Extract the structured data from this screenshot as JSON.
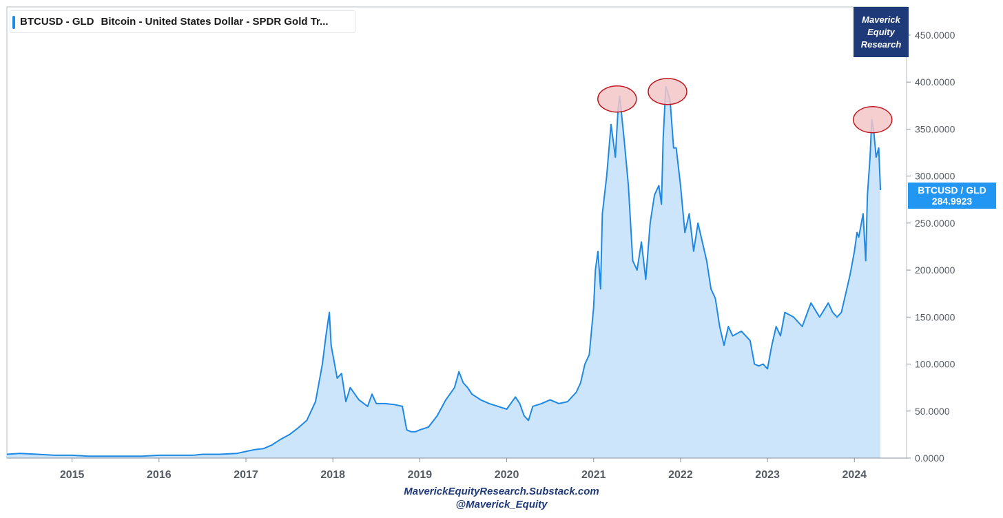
{
  "legend": {
    "symbol": "BTCUSD - GLD",
    "description": "Bitcoin - United States Dollar - SPDR Gold Tr..."
  },
  "brand": {
    "line1": "Maverick",
    "line2": "Equity",
    "line3": "Research"
  },
  "price_tag": {
    "label": "BTCUSD / GLD",
    "value": "284.9923"
  },
  "footer": {
    "site": "MaverickEquityResearch.Substack.com",
    "handle": "@Maverick_Equity"
  },
  "colors": {
    "line": "#1e88e5",
    "fill": "#cce5fb",
    "highlight_fill": "#f3c6c8",
    "highlight_stroke": "#c0161e",
    "brand_bg": "#1f3a78",
    "tag_bg": "#2196f3"
  },
  "chart_data": {
    "type": "area",
    "ylim": [
      0,
      480
    ],
    "xlim": [
      2014.25,
      2024.6
    ],
    "y_ticks": [
      0,
      50,
      100,
      150,
      200,
      250,
      300,
      350,
      400,
      450
    ],
    "y_tick_labels": [
      "0.0000",
      "50.0000",
      "100.0000",
      "150.0000",
      "200.0000",
      "250.0000",
      "300.0000",
      "350.0000",
      "400.0000",
      "450.0000"
    ],
    "x_ticks": [
      2015,
      2016,
      2017,
      2018,
      2019,
      2020,
      2021,
      2022,
      2023,
      2024
    ],
    "x_tick_labels": [
      "2015",
      "2016",
      "2017",
      "2018",
      "2019",
      "2020",
      "2021",
      "2022",
      "2023",
      "2024"
    ],
    "series": [
      {
        "x": [
          2014.25,
          2014.4,
          2014.6,
          2014.8,
          2015.0,
          2015.2,
          2015.5,
          2015.8,
          2016.0,
          2016.2,
          2016.4,
          2016.5,
          2016.7,
          2016.9,
          2017.0,
          2017.1,
          2017.2,
          2017.3,
          2017.4,
          2017.5,
          2017.6,
          2017.7,
          2017.8,
          2017.88,
          2017.92,
          2017.96,
          2017.98,
          2018.0,
          2018.05,
          2018.1,
          2018.15,
          2018.2,
          2018.3,
          2018.4,
          2018.45,
          2018.5,
          2018.6,
          2018.7,
          2018.8,
          2018.85,
          2018.9,
          2018.95,
          2019.0,
          2019.1,
          2019.2,
          2019.3,
          2019.4,
          2019.45,
          2019.5,
          2019.55,
          2019.6,
          2019.7,
          2019.8,
          2019.9,
          2020.0,
          2020.1,
          2020.15,
          2020.2,
          2020.25,
          2020.3,
          2020.4,
          2020.5,
          2020.6,
          2020.7,
          2020.8,
          2020.85,
          2020.9,
          2020.95,
          2021.0,
          2021.02,
          2021.05,
          2021.08,
          2021.1,
          2021.15,
          2021.2,
          2021.25,
          2021.28,
          2021.3,
          2021.35,
          2021.4,
          2021.45,
          2021.5,
          2021.55,
          2021.6,
          2021.65,
          2021.7,
          2021.75,
          2021.78,
          2021.8,
          2021.83,
          2021.85,
          2021.88,
          2021.92,
          2021.95,
          2022.0,
          2022.05,
          2022.1,
          2022.15,
          2022.2,
          2022.25,
          2022.3,
          2022.35,
          2022.4,
          2022.45,
          2022.5,
          2022.55,
          2022.6,
          2022.7,
          2022.8,
          2022.85,
          2022.9,
          2022.95,
          2023.0,
          2023.05,
          2023.1,
          2023.15,
          2023.2,
          2023.3,
          2023.4,
          2023.5,
          2023.6,
          2023.7,
          2023.75,
          2023.8,
          2023.85,
          2023.9,
          2023.95,
          2024.0,
          2024.03,
          2024.05,
          2024.08,
          2024.1,
          2024.13,
          2024.15,
          2024.18,
          2024.2,
          2024.22,
          2024.25,
          2024.28,
          2024.3
        ],
        "y": [
          4,
          5,
          4,
          3,
          3,
          2,
          2,
          2,
          3,
          3,
          3,
          4,
          4,
          5,
          7,
          9,
          10,
          14,
          20,
          25,
          32,
          40,
          60,
          100,
          130,
          155,
          120,
          110,
          85,
          90,
          60,
          75,
          62,
          55,
          68,
          58,
          58,
          57,
          55,
          30,
          28,
          28,
          30,
          33,
          45,
          62,
          75,
          92,
          80,
          75,
          68,
          62,
          58,
          55,
          52,
          65,
          58,
          45,
          40,
          55,
          58,
          62,
          58,
          60,
          70,
          80,
          100,
          110,
          160,
          200,
          220,
          180,
          260,
          300,
          355,
          320,
          370,
          385,
          340,
          290,
          210,
          200,
          230,
          190,
          250,
          280,
          290,
          270,
          340,
          395,
          390,
          380,
          330,
          330,
          290,
          240,
          260,
          220,
          250,
          230,
          210,
          180,
          170,
          140,
          120,
          140,
          130,
          135,
          125,
          100,
          98,
          100,
          95,
          120,
          140,
          130,
          155,
          150,
          140,
          165,
          150,
          165,
          155,
          150,
          155,
          175,
          195,
          220,
          240,
          235,
          250,
          260,
          210,
          280,
          320,
          360,
          350,
          320,
          330,
          285
        ]
      }
    ],
    "highlights": [
      {
        "x": 2021.27,
        "y": 382
      },
      {
        "x": 2021.85,
        "y": 390
      },
      {
        "x": 2024.21,
        "y": 360
      }
    ]
  }
}
